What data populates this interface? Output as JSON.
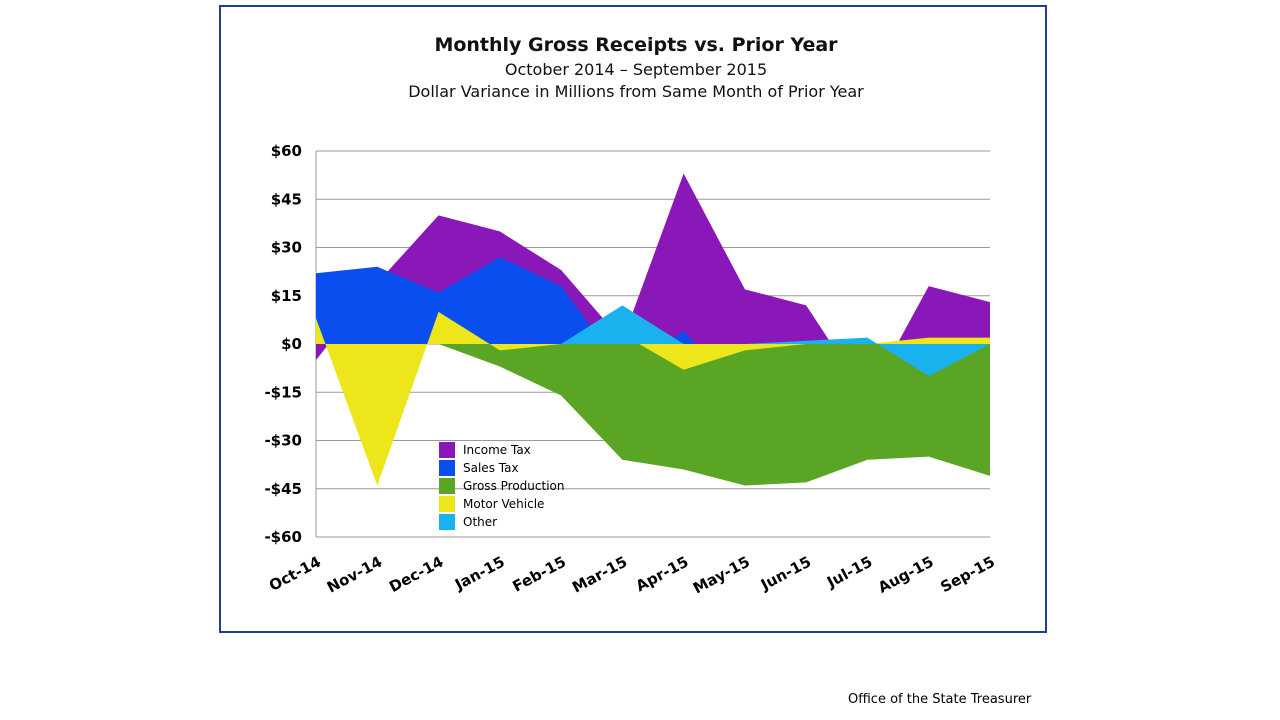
{
  "footer": "Office of the State Treasurer",
  "chart_data": {
    "type": "area",
    "title": "Monthly Gross Receipts vs. Prior Year",
    "subtitle": "October 2014 – September 2015",
    "subtitle2": "Dollar Variance in Millions from Same Month of Prior Year",
    "categories": [
      "Oct-14",
      "Nov-14",
      "Dec-14",
      "Jan-15",
      "Feb-15",
      "Mar-15",
      "Apr-15",
      "May-15",
      "Jun-15",
      "Jul-15",
      "Aug-15",
      "Sep-15"
    ],
    "ylim": [
      -60,
      60
    ],
    "yticks": [
      60,
      45,
      30,
      15,
      0,
      -15,
      -30,
      -45,
      -60
    ],
    "ytick_labels": [
      "$60",
      "$45",
      "$30",
      "$15",
      "$0",
      "-$15",
      "-$30",
      "-$45",
      "-$60"
    ],
    "grid": true,
    "legend_position": "lower-left inside plot",
    "series": [
      {
        "name": "Income Tax",
        "color": "#8a17b8",
        "values": [
          -5,
          19,
          40,
          35,
          23,
          1,
          53,
          17,
          12,
          -17,
          18,
          13
        ]
      },
      {
        "name": "Sales Tax",
        "color": "#0a4ef0",
        "values": [
          22,
          24,
          16,
          27,
          18,
          -8,
          4,
          -16,
          -12,
          1,
          -6,
          -24
        ]
      },
      {
        "name": "Gross Production",
        "color": "#5aa524",
        "values": [
          0,
          0,
          0,
          -7,
          -16,
          -36,
          -39,
          -44,
          -43,
          -36,
          -35,
          -41
        ]
      },
      {
        "name": "Motor Vehicle",
        "color": "#ece61a",
        "values": [
          8,
          -44,
          10,
          -2,
          0,
          3,
          -8,
          -2,
          0,
          0,
          2,
          2
        ]
      },
      {
        "name": "Other",
        "color": "#19b2ee",
        "values": [
          0,
          0,
          0,
          0,
          0,
          12,
          0,
          0,
          1,
          2,
          -10,
          0
        ]
      }
    ]
  }
}
